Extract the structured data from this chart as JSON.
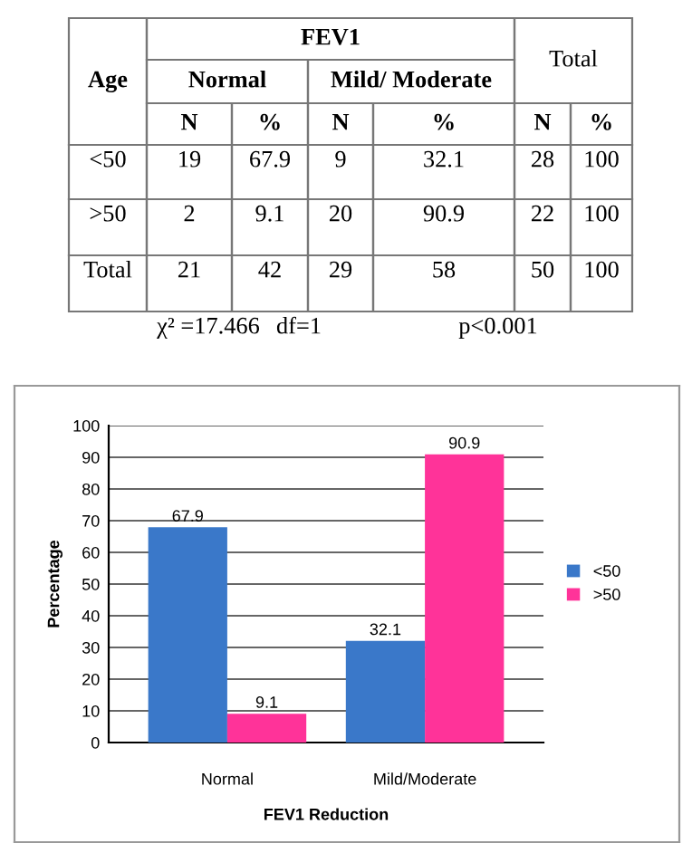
{
  "chart_data": [
    {
      "type": "other",
      "annotations": [
        "FEV1",
        "Age",
        "Normal",
        "Mild/ Moderate",
        "Total",
        "N",
        "%",
        "N",
        "%",
        "N",
        "%",
        "<50",
        "19",
        "67.9",
        "9",
        "32.1",
        "28",
        "100",
        ">50",
        "2",
        "9.1",
        "20",
        "90.9",
        "22",
        "100",
        "Total",
        "21",
        "42",
        "29",
        "58",
        "50",
        "100",
        "χ² =17.466",
        "df=1",
        "p<0.001"
      ]
    },
    {
      "type": "bar",
      "categories": [
        "Normal",
        "Mild/Moderate"
      ],
      "xlabel": "FEV1 Reduction",
      "ylabel": "Percentage",
      "series": [
        {
          "name": "<50",
          "color": "#3a78c9",
          "values": [
            67.9,
            32.1
          ]
        },
        {
          "name": ">50",
          "color": "#ff3399",
          "values": [
            9.1,
            90.9
          ]
        }
      ],
      "ylim": [
        0,
        100
      ],
      "yticks": [
        0,
        10,
        20,
        30,
        40,
        50,
        60,
        70,
        80,
        90,
        100
      ],
      "grid": "y",
      "legend": "right",
      "data_labels": true
    }
  ]
}
